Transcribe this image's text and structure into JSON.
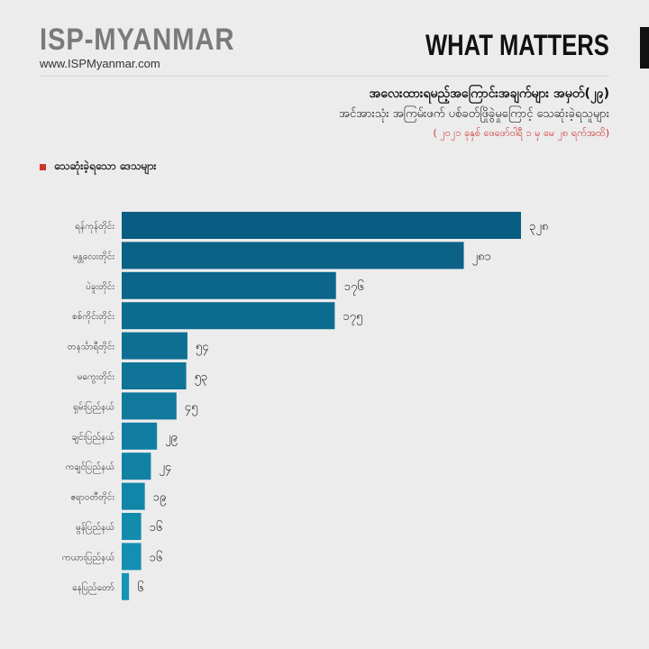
{
  "header": {
    "logo": "ISP-MYANMAR",
    "website": "www.ISPMyanmar.com",
    "tagline": "WHAT MATTERS"
  },
  "infographic": {
    "title": "အလေးထားရမည့်အကြောင်းအချက်များ အမှတ်(၂၉)",
    "subtitle": "အင်အားသုံး အကြမ်းဖက် ပစ်ခတ်ဖြိုခွဲမှုကြောင့် သေဆုံးခဲ့ရသူများ",
    "date_note": "( ၂၀၂၁ ခုနှစ် ဖေဖော်ဝါရီ ၁ မှ မေ ၂၈ ရက်အထိ)"
  },
  "legend": {
    "label": "သေဆုံးခဲ့ရသော ဒေသများ",
    "color": "#d0312d"
  },
  "colors": {
    "dark_bar": "#0a5d82",
    "light_bar": "#1594b5"
  },
  "chart_data": {
    "type": "bar",
    "orientation": "horizontal",
    "categories": [
      "ရန်ကုန်တိုင်း",
      "မန္တလေးတိုင်း",
      "ပဲခူးတိုင်း",
      "စစ်ကိုင်းတိုင်း",
      "တနင်္သာရီတိုင်း",
      "မကွေးတိုင်း",
      "ရှမ်းပြည်နယ်",
      "ချင်းပြည်နယ်",
      "ကချင်ပြည်နယ်",
      "ဧရာဝတီတိုင်း",
      "မွန်ပြည်နယ်",
      "ကယားပြည်နယ်",
      "နေပြည်တော်"
    ],
    "values": [
      328,
      281,
      176,
      175,
      54,
      53,
      45,
      29,
      24,
      19,
      16,
      16,
      6
    ],
    "value_labels": [
      "၃၂၈",
      "၂၈၁",
      "၁၇၆",
      "၁၇၅",
      "၅၄",
      "၅၃",
      "၄၅",
      "၂၉",
      "၂၄",
      "၁၉",
      "၁၆",
      "၁၆",
      "၆"
    ],
    "xlim": [
      0,
      328
    ],
    "grid": false
  }
}
